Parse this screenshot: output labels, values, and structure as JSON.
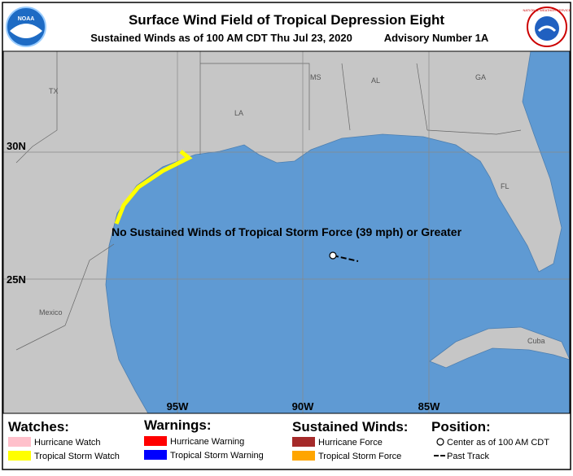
{
  "header": {
    "title": "Surface Wind Field of Tropical Depression Eight",
    "subtitle": "Sustained Winds as of 100 AM CDT Thu Jul 23, 2020",
    "advisory": "Advisory Number 1A",
    "left_logo": "NOAA",
    "right_logo": "NATIONAL WEATHER SERVICE"
  },
  "map": {
    "region_labels": [
      "TX",
      "LA",
      "MS",
      "AL",
      "GA",
      "FL",
      "Mexico",
      "Cuba"
    ],
    "latitude_labels": [
      "30N",
      "25N"
    ],
    "longitude_labels": [
      "95W",
      "90W",
      "85W"
    ],
    "annotation": "No Sustained Winds of Tropical Storm Force (39 mph) or Greater"
  },
  "legend": {
    "watches": {
      "title": "Watches:",
      "items": [
        "Hurricane Watch",
        "Tropical Storm Watch"
      ]
    },
    "warnings": {
      "title": "Warnings:",
      "items": [
        "Hurricane Warning",
        "Tropical Storm Warning"
      ]
    },
    "sustained_winds": {
      "title": "Sustained Winds:",
      "items": [
        "Hurricane Force",
        "Tropical Storm Force"
      ]
    },
    "position": {
      "title": "Position:",
      "items": [
        "Center as of 100 AM CDT",
        "Past Track"
      ]
    }
  }
}
